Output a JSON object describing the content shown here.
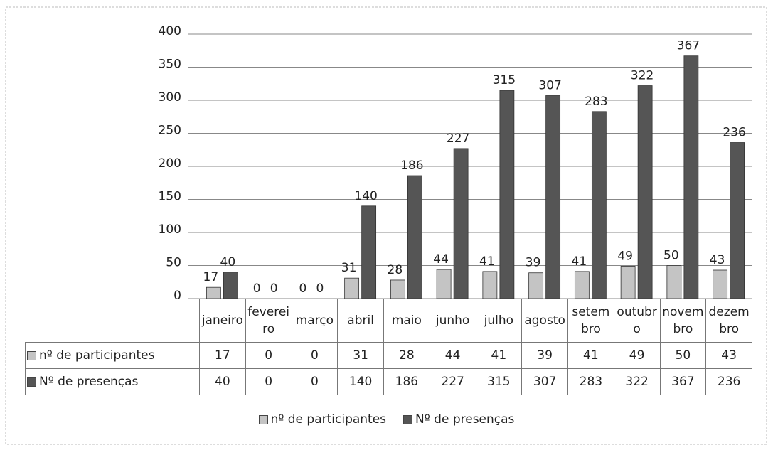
{
  "chart_data": {
    "type": "bar",
    "categories": [
      "janeiro",
      "fevereiro",
      "março",
      "abril",
      "maio",
      "junho",
      "julho",
      "agosto",
      "setembro",
      "outubro",
      "novembro",
      "dezembro"
    ],
    "series": [
      {
        "name": "nº de participantes",
        "color": "#c4c4c4",
        "values": [
          17,
          0,
          0,
          31,
          28,
          44,
          41,
          39,
          41,
          49,
          50,
          43
        ]
      },
      {
        "name": "Nº de presenças",
        "color": "#555555",
        "values": [
          40,
          0,
          0,
          140,
          186,
          227,
          315,
          307,
          283,
          322,
          367,
          236
        ]
      }
    ],
    "ylim": [
      0,
      400
    ],
    "yticks": [
      0,
      50,
      100,
      150,
      200,
      250,
      300,
      350,
      400
    ],
    "grid": true,
    "legend": "bottom"
  }
}
